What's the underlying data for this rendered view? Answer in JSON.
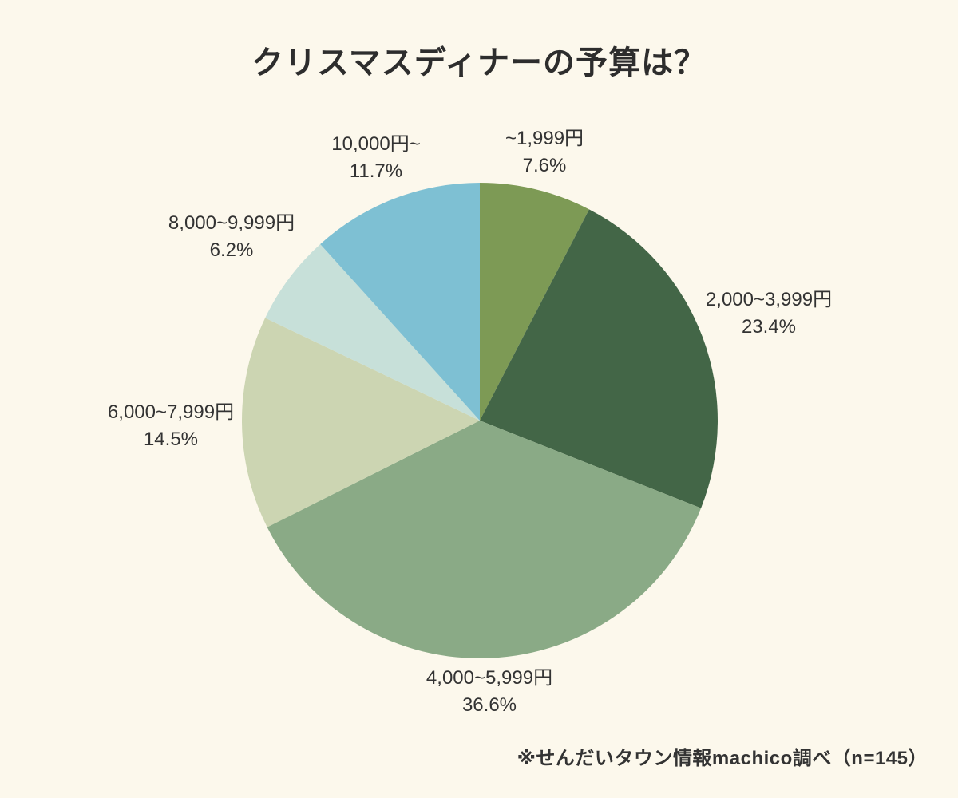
{
  "page": {
    "title": "クリスマスディナーの予算は？",
    "footer": "※せんだいタウン情報machico調べ（n=145）",
    "background_color": "#fcf8ec",
    "text_color": "#333333",
    "title_color": "#2d2d2d"
  },
  "chart_data": {
    "type": "pie",
    "title": "クリスマスディナーの予算は？",
    "source_note": "※せんだいタウン情報machico調べ（n=145）",
    "sample_size": 145,
    "categories": [
      "~1,999円",
      "2,000~3,999円",
      "4,000~5,999円",
      "6,000~7,999円",
      "8,000~9,999円",
      "10,000円~"
    ],
    "values": [
      7.6,
      23.4,
      36.6,
      14.5,
      6.2,
      11.7
    ],
    "percent_labels": [
      "7.6%",
      "23.4%",
      "36.6%",
      "14.5%",
      "6.2%",
      "11.7%"
    ],
    "colors": [
      "#7d9a55",
      "#436647",
      "#8aaa86",
      "#ccd5b2",
      "#c7e0d9",
      "#7ec0d3"
    ],
    "start_angle_deg": 0,
    "direction": "clockwise",
    "legend": "none",
    "labels_position": "outside"
  }
}
